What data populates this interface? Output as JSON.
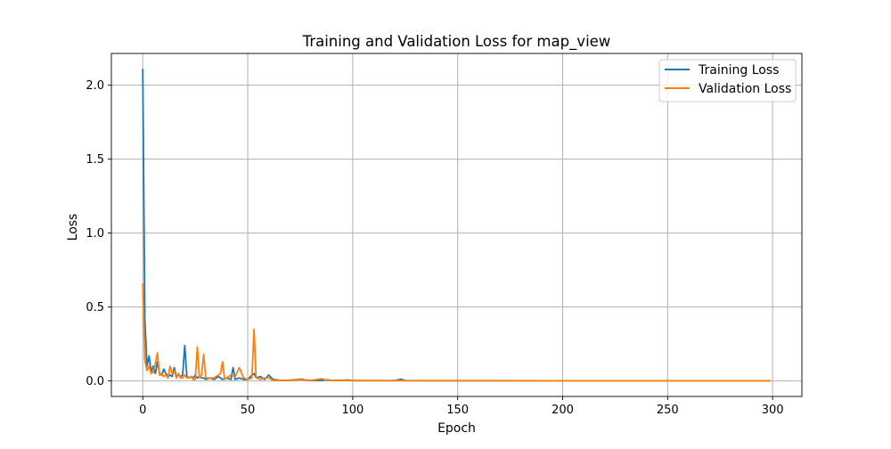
{
  "chart_data": {
    "type": "line",
    "title": "Training and Validation Loss for map_view",
    "xlabel": "Epoch",
    "ylabel": "Loss",
    "xlim": [
      -14.95,
      313.95
    ],
    "ylim": [
      -0.105,
      2.215
    ],
    "grid": true,
    "legend_position": "top-right",
    "xticks": [
      0,
      50,
      100,
      150,
      200,
      250,
      300
    ],
    "xtick_labels": [
      "0",
      "50",
      "100",
      "150",
      "200",
      "250",
      "300"
    ],
    "yticks": [
      0.0,
      0.5,
      1.0,
      1.5,
      2.0
    ],
    "ytick_labels": [
      "0.0",
      "0.5",
      "1.0",
      "1.5",
      "2.0"
    ],
    "series": [
      {
        "name": "Training Loss",
        "color": "#1f77b4",
        "points": [
          [
            0,
            2.11
          ],
          [
            1,
            0.42
          ],
          [
            2,
            0.1
          ],
          [
            3,
            0.17
          ],
          [
            4,
            0.06
          ],
          [
            5,
            0.1
          ],
          [
            6,
            0.05
          ],
          [
            7,
            0.13
          ],
          [
            8,
            0.05
          ],
          [
            9,
            0.04
          ],
          [
            10,
            0.08
          ],
          [
            11,
            0.05
          ],
          [
            12,
            0.03
          ],
          [
            13,
            0.04
          ],
          [
            14,
            0.03
          ],
          [
            15,
            0.09
          ],
          [
            16,
            0.03
          ],
          [
            17,
            0.04
          ],
          [
            18,
            0.03
          ],
          [
            19,
            0.04
          ],
          [
            20,
            0.24
          ],
          [
            21,
            0.03
          ],
          [
            22,
            0.02
          ],
          [
            23,
            0.03
          ],
          [
            24,
            0.02
          ],
          [
            25,
            0.04
          ],
          [
            26,
            0.02
          ],
          [
            27,
            0.03
          ],
          [
            28,
            0.02
          ],
          [
            29,
            0.02
          ],
          [
            30,
            0.01
          ],
          [
            32,
            0.02
          ],
          [
            34,
            0.01
          ],
          [
            36,
            0.03
          ],
          [
            38,
            0.01
          ],
          [
            40,
            0.02
          ],
          [
            42,
            0.01
          ],
          [
            43,
            0.09
          ],
          [
            44,
            0.01
          ],
          [
            46,
            0.02
          ],
          [
            48,
            0.01
          ],
          [
            50,
            0.01
          ],
          [
            52,
            0.04
          ],
          [
            53,
            0.05
          ],
          [
            54,
            0.02
          ],
          [
            56,
            0.03
          ],
          [
            58,
            0.01
          ],
          [
            60,
            0.04
          ],
          [
            62,
            0.01
          ],
          [
            65,
            0.005
          ],
          [
            70,
            0.004
          ],
          [
            74,
            0.01
          ],
          [
            76,
            0.012
          ],
          [
            78,
            0.004
          ],
          [
            85,
            0.003
          ],
          [
            88,
            0.008
          ],
          [
            90,
            0.003
          ],
          [
            98,
            0.006
          ],
          [
            100,
            0.002
          ],
          [
            110,
            0.002
          ],
          [
            120,
            0.002
          ],
          [
            123,
            0.012
          ],
          [
            125,
            0.002
          ],
          [
            140,
            0.001
          ],
          [
            160,
            0.001
          ],
          [
            200,
            0.001
          ],
          [
            250,
            0.001
          ],
          [
            299,
            0.001
          ]
        ]
      },
      {
        "name": "Validation Loss",
        "color": "#ff7f0e",
        "points": [
          [
            0,
            0.66
          ],
          [
            1,
            0.14
          ],
          [
            2,
            0.07
          ],
          [
            3,
            0.1
          ],
          [
            4,
            0.05
          ],
          [
            5,
            0.06
          ],
          [
            6,
            0.12
          ],
          [
            7,
            0.19
          ],
          [
            8,
            0.04
          ],
          [
            9,
            0.05
          ],
          [
            10,
            0.03
          ],
          [
            11,
            0.04
          ],
          [
            12,
            0.02
          ],
          [
            13,
            0.1
          ],
          [
            14,
            0.05
          ],
          [
            15,
            0.07
          ],
          [
            16,
            0.02
          ],
          [
            17,
            0.05
          ],
          [
            18,
            0.02
          ],
          [
            19,
            0.02
          ],
          [
            20,
            0.04
          ],
          [
            21,
            0.02
          ],
          [
            22,
            0.02
          ],
          [
            23,
            0.03
          ],
          [
            24,
            0.01
          ],
          [
            25,
            0.01
          ],
          [
            26,
            0.23
          ],
          [
            27,
            0.02
          ],
          [
            28,
            0.04
          ],
          [
            29,
            0.18
          ],
          [
            30,
            0.02
          ],
          [
            32,
            0.02
          ],
          [
            34,
            0.02
          ],
          [
            36,
            0.04
          ],
          [
            37,
            0.05
          ],
          [
            38,
            0.13
          ],
          [
            39,
            0.01
          ],
          [
            40,
            0.02
          ],
          [
            42,
            0.04
          ],
          [
            44,
            0.03
          ],
          [
            46,
            0.09
          ],
          [
            48,
            0.02
          ],
          [
            50,
            0.01
          ],
          [
            52,
            0.02
          ],
          [
            53,
            0.35
          ],
          [
            54,
            0.02
          ],
          [
            56,
            0.01
          ],
          [
            58,
            0.02
          ],
          [
            60,
            0.02
          ],
          [
            62,
            0.004
          ],
          [
            65,
            0.003
          ],
          [
            70,
            0.003
          ],
          [
            75,
            0.01
          ],
          [
            80,
            0.003
          ],
          [
            85,
            0.015
          ],
          [
            88,
            0.004
          ],
          [
            90,
            0.003
          ],
          [
            100,
            0.003
          ],
          [
            110,
            0.002
          ],
          [
            120,
            0.002
          ],
          [
            130,
            0.002
          ],
          [
            150,
            0.002
          ],
          [
            200,
            0.001
          ],
          [
            250,
            0.001
          ],
          [
            299,
            0.001
          ]
        ]
      }
    ]
  }
}
